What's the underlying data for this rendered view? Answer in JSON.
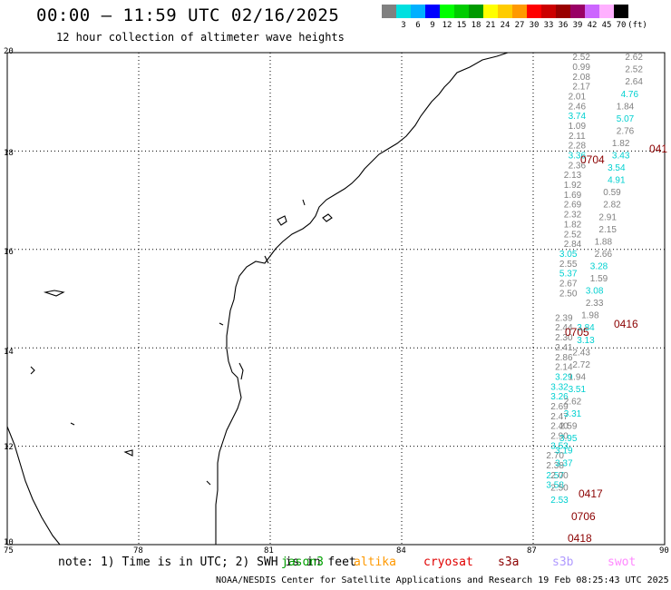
{
  "title": "00:00 – 11:59 UTC 02/16/2025",
  "subtitle": "12 hour collection of altimeter wave heights",
  "legend": {
    "unit": "(ft)",
    "bins": [
      {
        "label": "",
        "color": "#808080"
      },
      {
        "label": "3",
        "color": "#00e0e0"
      },
      {
        "label": "6",
        "color": "#00b0ff"
      },
      {
        "label": "9",
        "color": "#0000ff"
      },
      {
        "label": "12",
        "color": "#00ff00"
      },
      {
        "label": "15",
        "color": "#00cc00"
      },
      {
        "label": "18",
        "color": "#009a00"
      },
      {
        "label": "21",
        "color": "#ffff00"
      },
      {
        "label": "24",
        "color": "#ffcc00"
      },
      {
        "label": "27",
        "color": "#ff9900"
      },
      {
        "label": "30",
        "color": "#ff0000"
      },
      {
        "label": "33",
        "color": "#cc0000"
      },
      {
        "label": "36",
        "color": "#990000"
      },
      {
        "label": "39",
        "color": "#990066"
      },
      {
        "label": "42",
        "color": "#cc66ff"
      },
      {
        "label": "45",
        "color": "#ffb0ff"
      },
      {
        "label": "70",
        "color": "#000000"
      }
    ]
  },
  "axes": {
    "lat_labels": [
      "20",
      "18",
      "16",
      "14",
      "12",
      "10"
    ],
    "lon_labels": [
      "75",
      "78",
      "81",
      "84",
      "87",
      "90"
    ],
    "lat_range": [
      10,
      20
    ],
    "lon_range": [
      75,
      90
    ]
  },
  "note": {
    "prefix": "note: 1) Time is in UTC; 2) SWH is in feet",
    "satellites": [
      {
        "name": "jason3",
        "color": "#00a000"
      },
      {
        "name": "altika",
        "color": "#ff9900"
      },
      {
        "name": "cryosat",
        "color": "#e00000"
      },
      {
        "name": "s3a",
        "color": "#8b0000"
      },
      {
        "name": "s3b",
        "color": "#b09aff"
      },
      {
        "name": "swot",
        "color": "#ff88ff"
      }
    ]
  },
  "footer": "NOAA/NESDIS Center for Satellite Applications and Research    19 Feb 08:25:43 UTC 2025",
  "track_labels": [
    {
      "text": "0416",
      "color": "#8b0000"
    },
    {
      "text": "0705",
      "color": "#8b0000"
    },
    {
      "text": "0417",
      "color": "#8b0000"
    },
    {
      "text": "0706",
      "color": "#8b0000"
    },
    {
      "text": "0418",
      "color": "#8b0000"
    },
    {
      "text": "0704",
      "color": "#8b0000"
    },
    {
      "text": "041",
      "color": "#8b0000"
    }
  ],
  "observations": [
    {
      "lon": 88.1,
      "lat": 19.85,
      "v": "2.52",
      "c": "#808080"
    },
    {
      "lon": 88.1,
      "lat": 19.65,
      "v": "0.99",
      "c": "#808080"
    },
    {
      "lon": 88.1,
      "lat": 19.45,
      "v": "2.08",
      "c": "#808080"
    },
    {
      "lon": 88.1,
      "lat": 19.25,
      "v": "2.17",
      "c": "#808080"
    },
    {
      "lon": 88.0,
      "lat": 19.05,
      "v": "2.01",
      "c": "#808080"
    },
    {
      "lon": 88.0,
      "lat": 18.85,
      "v": "2.46",
      "c": "#808080"
    },
    {
      "lon": 88.0,
      "lat": 18.65,
      "v": "3.74",
      "c": "#00d0d0"
    },
    {
      "lon": 88.0,
      "lat": 18.45,
      "v": "1.09",
      "c": "#808080"
    },
    {
      "lon": 88.0,
      "lat": 18.25,
      "v": "2.11",
      "c": "#808080"
    },
    {
      "lon": 88.0,
      "lat": 18.05,
      "v": "2.28",
      "c": "#808080"
    },
    {
      "lon": 88.0,
      "lat": 17.85,
      "v": "3.36",
      "c": "#00d0d0"
    },
    {
      "lon": 88.0,
      "lat": 17.65,
      "v": "2.36",
      "c": "#808080"
    },
    {
      "lon": 87.9,
      "lat": 17.45,
      "v": "2.13",
      "c": "#808080"
    },
    {
      "lon": 87.9,
      "lat": 17.25,
      "v": "1.92",
      "c": "#808080"
    },
    {
      "lon": 87.9,
      "lat": 17.05,
      "v": "1.69",
      "c": "#808080"
    },
    {
      "lon": 87.9,
      "lat": 16.85,
      "v": "2.69",
      "c": "#808080"
    },
    {
      "lon": 87.9,
      "lat": 16.65,
      "v": "2.32",
      "c": "#808080"
    },
    {
      "lon": 87.9,
      "lat": 16.45,
      "v": "1.82",
      "c": "#808080"
    },
    {
      "lon": 87.9,
      "lat": 16.25,
      "v": "2.52",
      "c": "#808080"
    },
    {
      "lon": 87.9,
      "lat": 16.05,
      "v": "2.84",
      "c": "#808080"
    },
    {
      "lon": 87.8,
      "lat": 15.85,
      "v": "3.05",
      "c": "#00d0d0"
    },
    {
      "lon": 87.8,
      "lat": 15.65,
      "v": "2.55",
      "c": "#808080"
    },
    {
      "lon": 87.8,
      "lat": 15.45,
      "v": "5.37",
      "c": "#00d0d0"
    },
    {
      "lon": 87.8,
      "lat": 15.25,
      "v": "2.67",
      "c": "#808080"
    },
    {
      "lon": 87.8,
      "lat": 15.05,
      "v": "2.50",
      "c": "#808080"
    },
    {
      "lon": 87.7,
      "lat": 14.55,
      "v": "2.39",
      "c": "#808080"
    },
    {
      "lon": 87.7,
      "lat": 14.35,
      "v": "2.44",
      "c": "#808080"
    },
    {
      "lon": 87.7,
      "lat": 14.15,
      "v": "2.30",
      "c": "#808080"
    },
    {
      "lon": 87.7,
      "lat": 13.95,
      "v": "2.41",
      "c": "#808080"
    },
    {
      "lon": 87.7,
      "lat": 13.75,
      "v": "2.86",
      "c": "#808080"
    },
    {
      "lon": 87.7,
      "lat": 13.55,
      "v": "2.14",
      "c": "#808080"
    },
    {
      "lon": 87.7,
      "lat": 13.35,
      "v": "3.29",
      "c": "#00d0d0"
    },
    {
      "lon": 87.6,
      "lat": 13.15,
      "v": "3.32",
      "c": "#00d0d0"
    },
    {
      "lon": 87.6,
      "lat": 12.95,
      "v": "3.26",
      "c": "#00d0d0"
    },
    {
      "lon": 87.6,
      "lat": 12.75,
      "v": "2.69",
      "c": "#808080"
    },
    {
      "lon": 87.6,
      "lat": 12.55,
      "v": "2.47",
      "c": "#808080"
    },
    {
      "lon": 87.6,
      "lat": 12.35,
      "v": "2.40",
      "c": "#808080"
    },
    {
      "lon": 87.6,
      "lat": 12.15,
      "v": "2.90",
      "c": "#808080"
    },
    {
      "lon": 87.6,
      "lat": 11.95,
      "v": "3.53",
      "c": "#00d0d0"
    },
    {
      "lon": 87.5,
      "lat": 11.75,
      "v": "2.70",
      "c": "#808080"
    },
    {
      "lon": 87.5,
      "lat": 11.55,
      "v": "2.38",
      "c": "#808080"
    },
    {
      "lon": 87.5,
      "lat": 11.35,
      "v": "2.57",
      "c": "#00d0d0"
    },
    {
      "lon": 87.5,
      "lat": 11.15,
      "v": "3.58",
      "c": "#00d0d0"
    },
    {
      "lon": 89.3,
      "lat": 19.85,
      "v": "2.62",
      "c": "#808080"
    },
    {
      "lon": 89.3,
      "lat": 19.6,
      "v": "2.52",
      "c": "#808080"
    },
    {
      "lon": 89.3,
      "lat": 19.35,
      "v": "2.64",
      "c": "#808080"
    },
    {
      "lon": 89.2,
      "lat": 19.1,
      "v": "4.76",
      "c": "#00d0d0"
    },
    {
      "lon": 89.1,
      "lat": 18.85,
      "v": "1.84",
      "c": "#808080"
    },
    {
      "lon": 89.1,
      "lat": 18.6,
      "v": "5.07",
      "c": "#00d0d0"
    },
    {
      "lon": 89.1,
      "lat": 18.35,
      "v": "2.76",
      "c": "#808080"
    },
    {
      "lon": 89.0,
      "lat": 18.1,
      "v": "1.82",
      "c": "#808080"
    },
    {
      "lon": 89.0,
      "lat": 17.85,
      "v": "3.43",
      "c": "#00d0d0"
    },
    {
      "lon": 88.9,
      "lat": 17.6,
      "v": "3.54",
      "c": "#00d0d0"
    },
    {
      "lon": 88.9,
      "lat": 17.35,
      "v": "4.91",
      "c": "#00d0d0"
    },
    {
      "lon": 88.8,
      "lat": 17.1,
      "v": "0.59",
      "c": "#808080"
    },
    {
      "lon": 88.8,
      "lat": 16.85,
      "v": "2.82",
      "c": "#808080"
    },
    {
      "lon": 88.7,
      "lat": 16.6,
      "v": "2.91",
      "c": "#808080"
    },
    {
      "lon": 88.7,
      "lat": 16.35,
      "v": "2.15",
      "c": "#808080"
    },
    {
      "lon": 88.6,
      "lat": 16.1,
      "v": "1.88",
      "c": "#808080"
    },
    {
      "lon": 88.6,
      "lat": 15.85,
      "v": "2.66",
      "c": "#808080"
    },
    {
      "lon": 88.5,
      "lat": 15.6,
      "v": "3.28",
      "c": "#00d0d0"
    },
    {
      "lon": 88.5,
      "lat": 15.35,
      "v": "1.59",
      "c": "#808080"
    },
    {
      "lon": 88.4,
      "lat": 15.1,
      "v": "3.08",
      "c": "#00d0d0"
    },
    {
      "lon": 88.4,
      "lat": 14.85,
      "v": "2.33",
      "c": "#808080"
    },
    {
      "lon": 88.3,
      "lat": 14.6,
      "v": "1.98",
      "c": "#808080"
    },
    {
      "lon": 88.2,
      "lat": 14.35,
      "v": "3.84",
      "c": "#00d0d0"
    },
    {
      "lon": 88.2,
      "lat": 14.1,
      "v": "3.13",
      "c": "#00d0d0"
    },
    {
      "lon": 88.1,
      "lat": 13.85,
      "v": "2.43",
      "c": "#808080"
    },
    {
      "lon": 88.1,
      "lat": 13.6,
      "v": "2.72",
      "c": "#808080"
    },
    {
      "lon": 88.0,
      "lat": 13.35,
      "v": "1.94",
      "c": "#808080"
    },
    {
      "lon": 88.0,
      "lat": 13.1,
      "v": "3.51",
      "c": "#00d0d0"
    },
    {
      "lon": 87.9,
      "lat": 12.85,
      "v": "2.62",
      "c": "#808080"
    },
    {
      "lon": 87.9,
      "lat": 12.6,
      "v": "3.31",
      "c": "#00d0d0"
    },
    {
      "lon": 87.8,
      "lat": 12.35,
      "v": "2.59",
      "c": "#808080"
    },
    {
      "lon": 87.8,
      "lat": 12.1,
      "v": "3.95",
      "c": "#00d0d0"
    },
    {
      "lon": 87.7,
      "lat": 11.85,
      "v": "3.19",
      "c": "#00d0d0"
    },
    {
      "lon": 87.7,
      "lat": 11.6,
      "v": "3.37",
      "c": "#00d0d0"
    },
    {
      "lon": 87.6,
      "lat": 11.35,
      "v": "2.00",
      "c": "#808080"
    },
    {
      "lon": 87.6,
      "lat": 11.1,
      "v": "2.50",
      "c": "#808080"
    },
    {
      "lon": 87.6,
      "lat": 10.85,
      "v": "2.53",
      "c": "#00d0d0"
    }
  ]
}
